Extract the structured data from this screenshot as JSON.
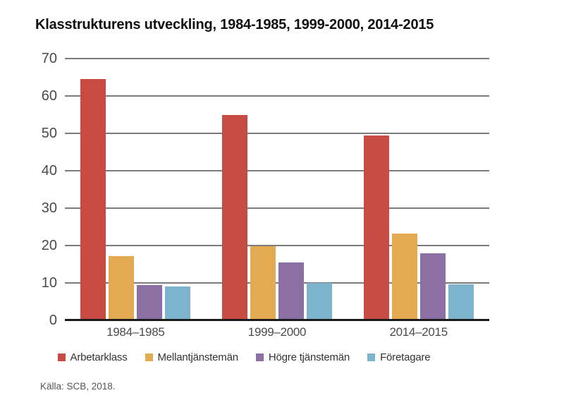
{
  "title": "Klasstrukturens utveckling, 1984-1985, 1999-2000, 2014-2015",
  "source": "Källa: SCB, 2018.",
  "chart_data": {
    "type": "bar",
    "title": "Klasstrukturens utveckling, 1984-1985, 1999-2000, 2014-2015",
    "categories": [
      "1984–1985",
      "1999–2000",
      "2014–2015"
    ],
    "series": [
      {
        "name": "Arbetarklass",
        "color": "#C84B44",
        "values": [
          64.5,
          55.0,
          49.4
        ]
      },
      {
        "name": "Mellantjänstemän",
        "color": "#E3AA52",
        "values": [
          17.2,
          19.9,
          23.2
        ]
      },
      {
        "name": "Högre tjänstemän",
        "color": "#8C70A4",
        "values": [
          9.5,
          15.5,
          17.9
        ]
      },
      {
        "name": "Företagare",
        "color": "#7CB4CE",
        "values": [
          9.0,
          10.0,
          9.7
        ]
      }
    ],
    "xlabel": "",
    "ylabel": "",
    "ylim": [
      0,
      70
    ],
    "yticks": [
      0,
      10,
      20,
      30,
      40,
      50,
      60,
      70
    ],
    "grid": true,
    "gridline_color": "#7b7b7b",
    "baseline_color": "#1b1b1b",
    "legend_position": "bottom",
    "source": "Källa: SCB, 2018."
  }
}
